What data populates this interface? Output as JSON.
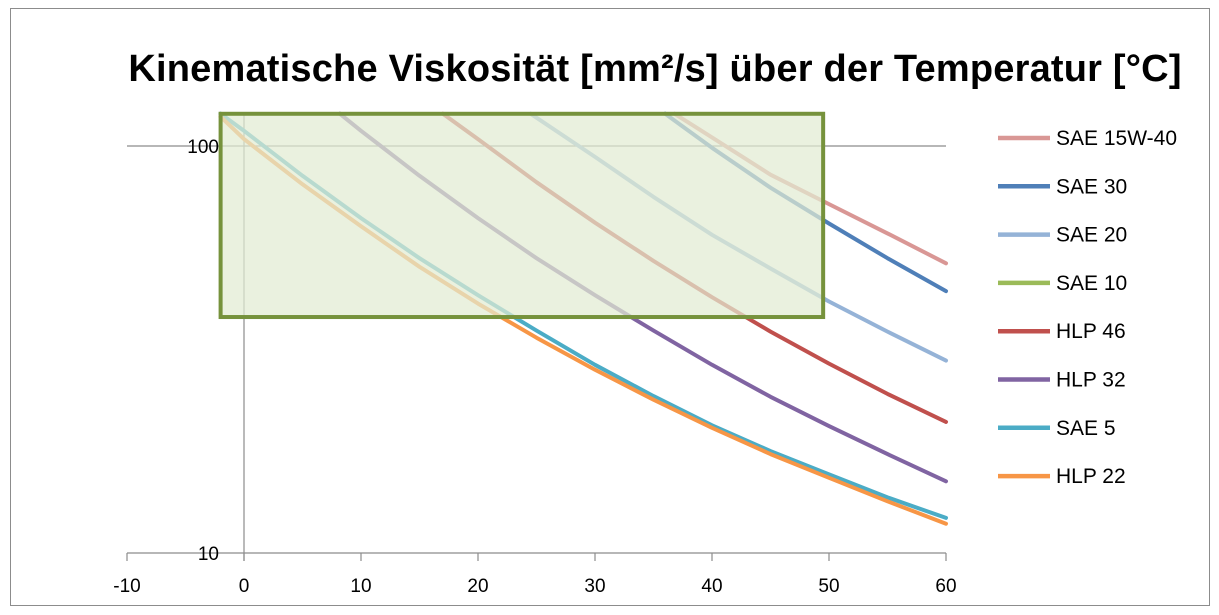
{
  "chart_data": {
    "type": "line",
    "title": "Kinematische Viskosität [mm²/s] über der Temperatur [°C]",
    "xlabel": "",
    "ylabel": "",
    "xlim": [
      -10,
      60
    ],
    "ylim": [
      10,
      120
    ],
    "yscale": "log",
    "x_ticks": [
      "-10",
      "0",
      "10",
      "20",
      "30",
      "40",
      "50",
      "60"
    ],
    "y_ticks": [
      "10",
      "100"
    ],
    "legend_position": "right",
    "grid": true,
    "highlight_rect": {
      "x": [
        -2,
        49.5
      ],
      "y": [
        38,
        120
      ],
      "fill": "#e2ebd3",
      "stroke": "#76923c"
    },
    "series": [
      {
        "name": "SAE 15W-40",
        "color": "#d99795",
        "x": [
          36.8,
          40,
          45,
          50,
          55,
          60
        ],
        "values": [
          120,
          105,
          85,
          72,
          61,
          51.5
        ]
      },
      {
        "name": "SAE 30",
        "color": "#4f7fb8",
        "x": [
          36,
          40,
          45,
          50,
          55,
          60
        ],
        "values": [
          120,
          99,
          79,
          64.5,
          53,
          44
        ]
      },
      {
        "name": "SAE 20",
        "color": "#95b3d7",
        "x": [
          24.5,
          30,
          35,
          40,
          45,
          50,
          55,
          60
        ],
        "values": [
          120,
          94,
          75,
          60.5,
          50,
          41.5,
          35,
          29.7
        ]
      },
      {
        "name": "SAE 10",
        "color": "#9bbb59",
        "x": [],
        "values": []
      },
      {
        "name": "HLP 46",
        "color": "#c0504d",
        "x": [
          17,
          20,
          25,
          30,
          35,
          40,
          45,
          50,
          55,
          60
        ],
        "values": [
          120,
          104,
          81.5,
          64.8,
          52.2,
          42.5,
          35,
          29.2,
          24.6,
          21
        ]
      },
      {
        "name": "HLP 32",
        "color": "#8064a2",
        "x": [
          8.2,
          10,
          15,
          20,
          25,
          30,
          35,
          40,
          45,
          50,
          55,
          60
        ],
        "values": [
          120,
          109,
          84.5,
          66.5,
          53,
          43,
          35.2,
          29,
          24.2,
          20.5,
          17.5,
          15
        ]
      },
      {
        "name": "SAE 5",
        "color": "#4bacc6",
        "x": [
          -2,
          0,
          5,
          10,
          15,
          20,
          25,
          30,
          35,
          40,
          45,
          50,
          55,
          60
        ],
        "values": [
          120,
          109,
          84.5,
          66.5,
          53,
          43,
          35.2,
          29,
          24.3,
          20.6,
          17.8,
          15.6,
          13.7,
          12.2
        ]
      },
      {
        "name": "HLP 22",
        "color": "#f79646",
        "x": [
          -2,
          0,
          5,
          10,
          15,
          20,
          25,
          30,
          35,
          40,
          45,
          50,
          55,
          60
        ],
        "values": [
          118,
          104,
          80.5,
          63.5,
          50.5,
          41,
          33.8,
          28.2,
          23.8,
          20.3,
          17.5,
          15.3,
          13.4,
          11.8
        ]
      }
    ]
  }
}
